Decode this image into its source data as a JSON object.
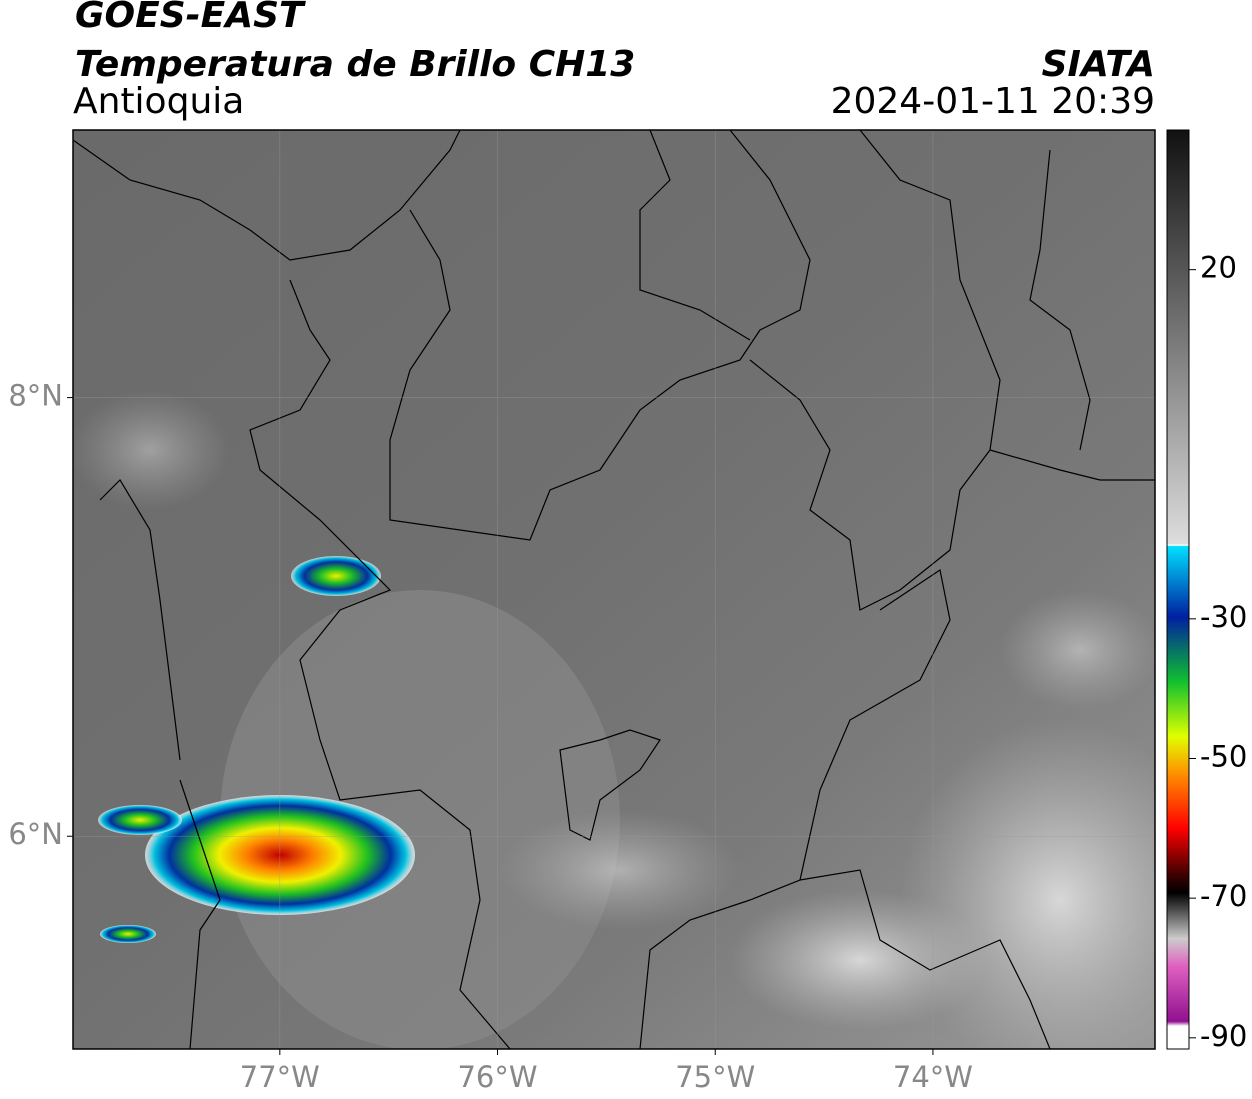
{
  "header": {
    "satellite": "GOES-EAST",
    "product": "Temperatura de Brillo CH13",
    "region": "Antioquia",
    "source": "SIATA",
    "datetime": "2024-01-11 20:39"
  },
  "map": {
    "lon_range": [
      -77.95,
      -72.98
    ],
    "lat_range": [
      5.03,
      9.22
    ],
    "lon_ticks": [
      {
        "value": -77,
        "label": "77°W"
      },
      {
        "value": -76,
        "label": "76°W"
      },
      {
        "value": -75,
        "label": "75°W"
      },
      {
        "value": -74,
        "label": "74°W"
      }
    ],
    "lat_ticks": [
      {
        "value": 8,
        "label": "8°N"
      },
      {
        "value": 6,
        "label": "6°N"
      }
    ]
  },
  "colorbar": {
    "range": [
      -91.6,
      40
    ],
    "ticks": [
      20,
      -30,
      -50,
      -70,
      -90
    ]
  }
}
